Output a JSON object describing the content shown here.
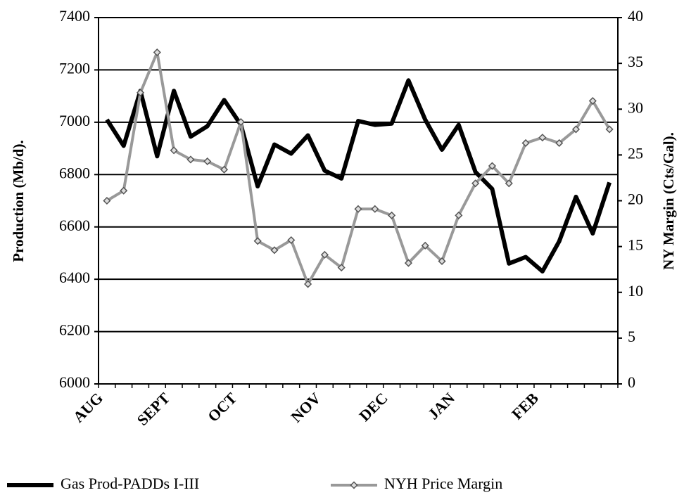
{
  "chart_data": {
    "type": "line",
    "categories": [
      "AUG",
      null,
      null,
      null,
      "SEPT",
      null,
      null,
      null,
      "OCT",
      null,
      null,
      null,
      null,
      "NOV",
      null,
      null,
      null,
      "DEC",
      null,
      null,
      null,
      "JAN",
      null,
      null,
      null,
      null,
      "FEB",
      null,
      null,
      null,
      null
    ],
    "y_label": "Production (Mb/d).",
    "y2_label": "NY Margin (Cts/Gal).",
    "ylim": [
      6000,
      7400
    ],
    "yticks": [
      6000,
      6200,
      6400,
      6600,
      6800,
      7000,
      7200,
      7400
    ],
    "y2lim": [
      0,
      40
    ],
    "y2ticks": [
      0,
      5,
      10,
      15,
      20,
      25,
      30,
      35,
      40
    ],
    "grid": true,
    "legend": "bottom",
    "series": [
      {
        "name": "Gas Prod-PADDs I-III",
        "color": "#000000",
        "values": [
          7010,
          6910,
          7120,
          6870,
          7120,
          6945,
          6985,
          7085,
          6990,
          6755,
          6915,
          6880,
          6950,
          6815,
          6785,
          7005,
          6990,
          6995,
          7160,
          7010,
          6895,
          6990,
          6810,
          6745,
          6460,
          6485,
          6430,
          6545,
          6715,
          6575,
          6770
        ]
      },
      {
        "name": "NYH Price Margin",
        "color": "#999999",
        "axis": "y2",
        "values": [
          20,
          21.1,
          31.8,
          36.2,
          25.5,
          24.5,
          24.3,
          23.4,
          28.6,
          15.6,
          14.6,
          15.7,
          10.9,
          14.1,
          12.7,
          19.1,
          19.1,
          18.4,
          13.2,
          15.1,
          13.4,
          18.4,
          21.9,
          23.8,
          21.9,
          26.3,
          26.9,
          26.3,
          27.8,
          30.9,
          27.8
        ]
      }
    ]
  }
}
